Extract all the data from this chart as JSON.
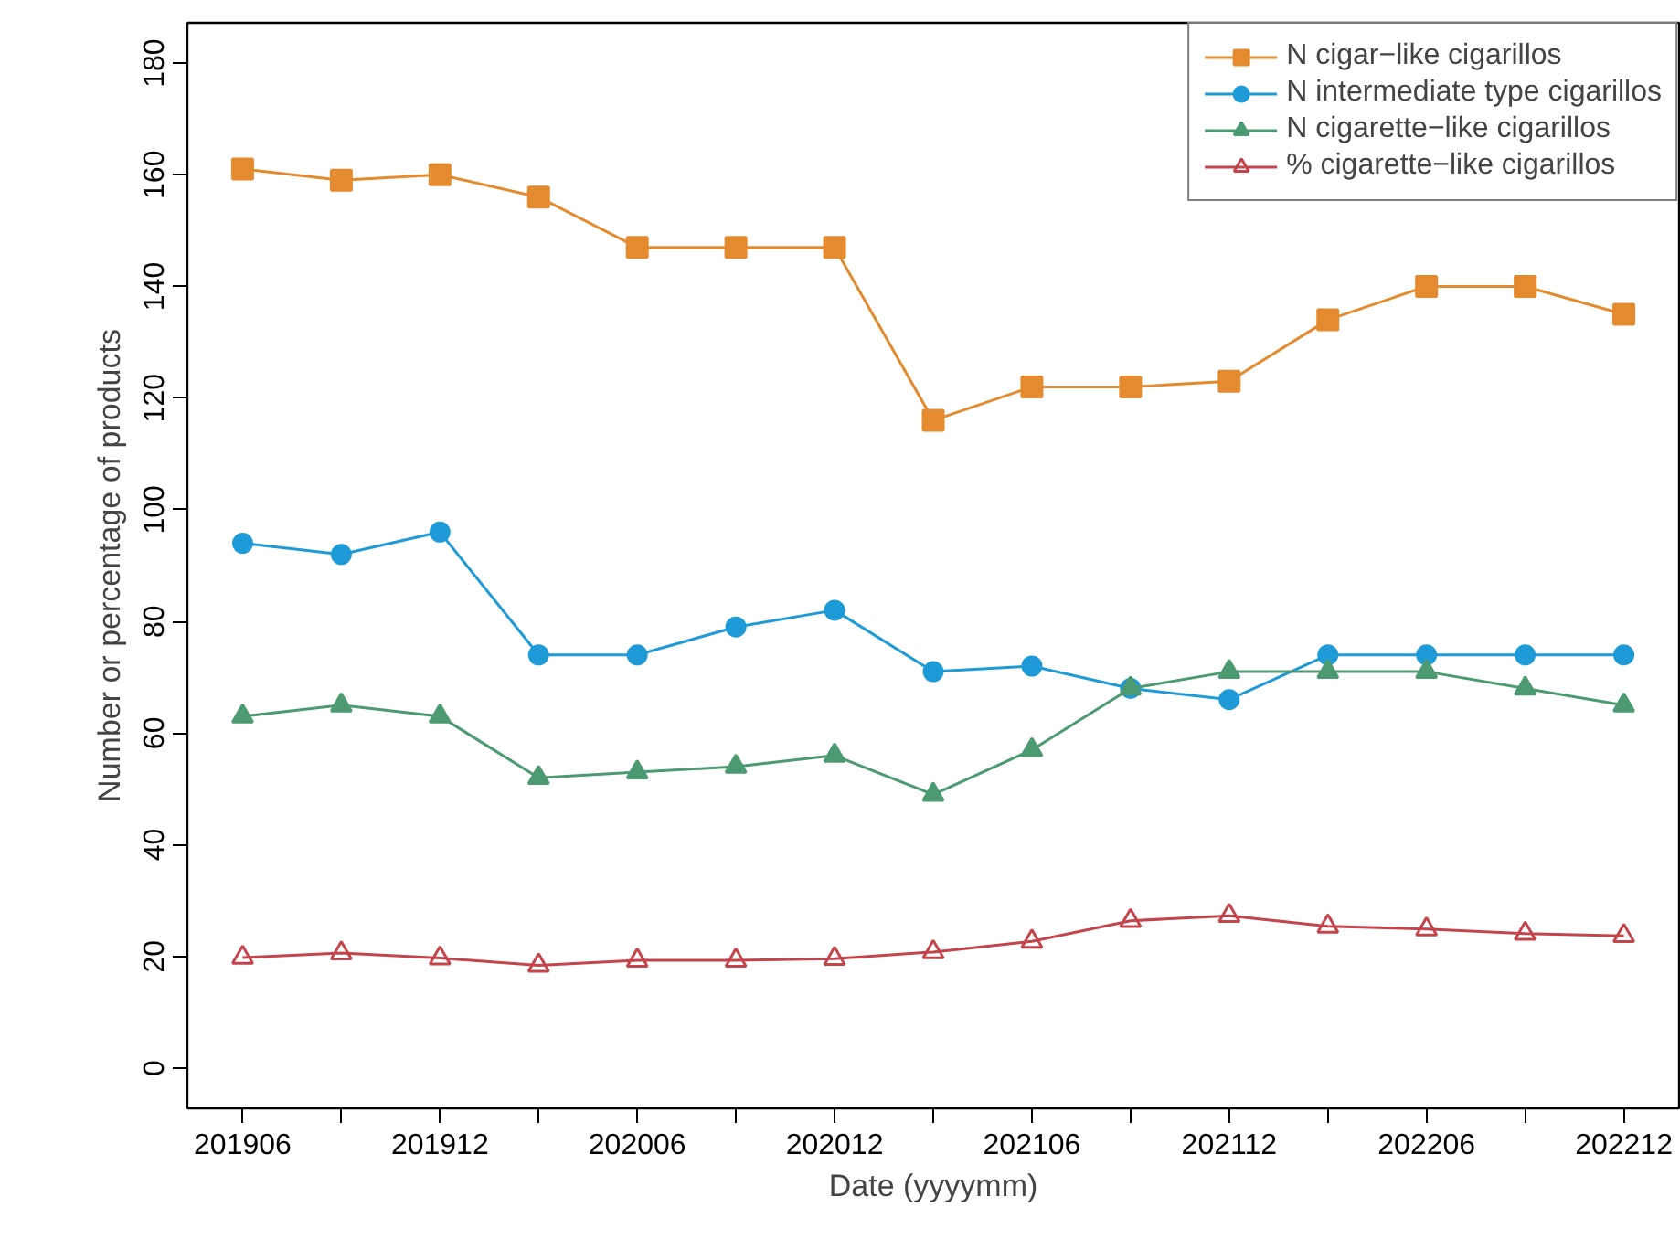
{
  "chart_data": {
    "type": "line",
    "xlabel": "Date (yyyymm)",
    "ylabel": "Number or percentage of products",
    "categories": [
      "201906",
      null,
      "201912",
      null,
      "202006",
      null,
      "202012",
      null,
      "202106",
      null,
      "202112",
      null,
      "202206",
      null,
      "202212"
    ],
    "ylim": [
      -7.2,
      187.2
    ],
    "yticks": [
      0,
      20,
      40,
      60,
      80,
      100,
      120,
      140,
      160,
      180
    ],
    "grid": false,
    "legend": "top right",
    "series": [
      {
        "name": "N cigar−like cigarillos",
        "color": "#e58b2f",
        "marker": "square",
        "values": [
          161,
          159,
          160,
          156,
          147,
          147,
          147,
          116,
          122,
          122,
          123,
          134,
          140,
          140,
          135
        ]
      },
      {
        "name": "N intermediate type cigarillos",
        "color": "#1e9bd7",
        "marker": "circle",
        "values": [
          94,
          92,
          96,
          74,
          74,
          79,
          82,
          71,
          72,
          68,
          66,
          74,
          74,
          74,
          74
        ]
      },
      {
        "name": "N cigarette−like cigarillos",
        "color": "#4c9a72",
        "marker": "triangle",
        "values": [
          63,
          65,
          63,
          52,
          53,
          54,
          56,
          49,
          57,
          68,
          71,
          71,
          71,
          68,
          65
        ]
      },
      {
        "name": "% cigarette−like cigarillos",
        "color": "#c4444c",
        "marker": "triangle",
        "values": [
          19.8,
          20.6,
          19.7,
          18.4,
          19.3,
          19.3,
          19.6,
          20.8,
          22.7,
          26.4,
          27.3,
          25.4,
          24.9,
          24.1,
          23.7
        ]
      }
    ]
  }
}
